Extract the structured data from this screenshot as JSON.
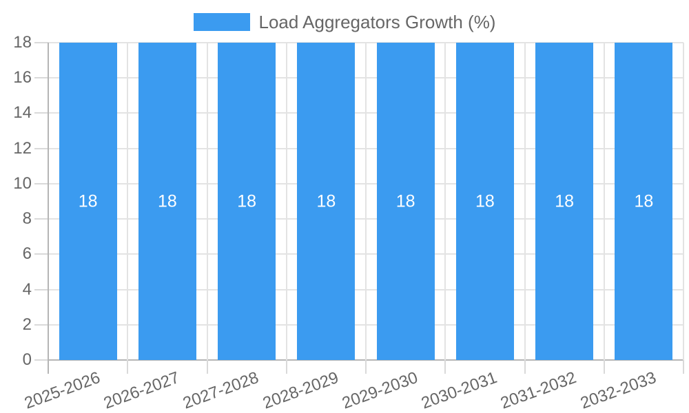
{
  "chart_data": {
    "type": "bar",
    "title": "",
    "legend": {
      "label": "Load Aggregators Growth (%)",
      "position": "top"
    },
    "categories": [
      "2025-2026",
      "2026-2027",
      "2027-2028",
      "2028-2029",
      "2029-2030",
      "2030-2031",
      "2031-2032",
      "2032-2033"
    ],
    "series": [
      {
        "name": "Load Aggregators Growth (%)",
        "values": [
          18,
          18,
          18,
          18,
          18,
          18,
          18,
          18
        ]
      }
    ],
    "value_labels": [
      "18",
      "18",
      "18",
      "18",
      "18",
      "18",
      "18",
      "18"
    ],
    "xlabel": "",
    "ylabel": "",
    "ylim": [
      0,
      18
    ],
    "yticks": [
      0,
      2,
      4,
      6,
      8,
      10,
      12,
      14,
      16,
      18
    ],
    "grid": true,
    "colors": {
      "bar": "#3B9BF0",
      "grid": "#E3E3E3",
      "tick_mark": "#D9D9D9",
      "axis_line": "#B5B5B5",
      "tick_label": "#666666",
      "legend_text": "#666666",
      "value_label": "#FFFFFF"
    }
  }
}
